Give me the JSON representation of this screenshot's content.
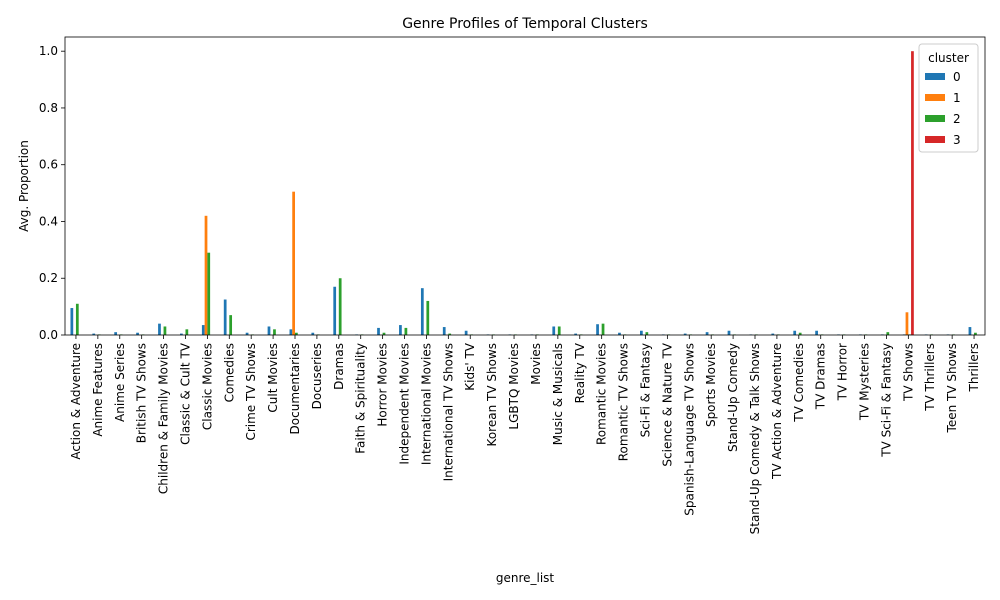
{
  "chart_data": {
    "type": "bar",
    "title": "Genre Profiles of Temporal Clusters",
    "xlabel": "genre_list",
    "ylabel": "Avg. Proportion",
    "ylim": [
      0,
      1.05
    ],
    "yticks": [
      "0.0",
      "0.2",
      "0.4",
      "0.6",
      "0.8",
      "1.0"
    ],
    "legend": {
      "title": "cluster",
      "placement": "top-right"
    },
    "colors": [
      "#1f77b4",
      "#ff7f0e",
      "#2ca02c",
      "#d62728"
    ],
    "categories": [
      "Action & Adventure",
      "Anime Features",
      "Anime Series",
      "British TV Shows",
      "Children & Family Movies",
      "Classic & Cult TV",
      "Classic Movies",
      "Comedies",
      "Crime TV Shows",
      "Cult Movies",
      "Documentaries",
      "Docuseries",
      "Dramas",
      "Faith & Spirituality",
      "Horror Movies",
      "Independent Movies",
      "International Movies",
      "International TV Shows",
      "Kids' TV",
      "Korean TV Shows",
      "LGBTQ Movies",
      "Movies",
      "Music & Musicals",
      "Reality TV",
      "Romantic Movies",
      "Romantic TV Shows",
      "Sci-Fi & Fantasy",
      "Science & Nature TV",
      "Spanish-Language TV Shows",
      "Sports Movies",
      "Stand-Up Comedy",
      "Stand-Up Comedy & Talk Shows",
      "TV Action & Adventure",
      "TV Comedies",
      "TV Dramas",
      "TV Horror",
      "TV Mysteries",
      "TV Sci-Fi & Fantasy",
      "TV Shows",
      "TV Thrillers",
      "Teen TV Shows",
      "Thrillers"
    ],
    "series": [
      {
        "name": "0",
        "values": [
          0.095,
          0.005,
          0.01,
          0.008,
          0.04,
          0.005,
          0.035,
          0.125,
          0.008,
          0.03,
          0.02,
          0.008,
          0.17,
          0.002,
          0.025,
          0.035,
          0.165,
          0.028,
          0.015,
          0.002,
          0.002,
          0.002,
          0.03,
          0.005,
          0.038,
          0.008,
          0.015,
          0.002,
          0.005,
          0.01,
          0.015,
          0.002,
          0.005,
          0.015,
          0.015,
          0.002,
          0.002,
          0.002,
          0.002,
          0.002,
          0.002,
          0.028
        ]
      },
      {
        "name": "1",
        "values": [
          0,
          0,
          0,
          0,
          0,
          0,
          0.42,
          0,
          0,
          0,
          0.505,
          0,
          0,
          0,
          0,
          0,
          0,
          0,
          0,
          0,
          0,
          0,
          0,
          0,
          0,
          0,
          0,
          0,
          0,
          0,
          0,
          0,
          0,
          0,
          0,
          0,
          0,
          0,
          0.08,
          0,
          0,
          0
        ]
      },
      {
        "name": "2",
        "values": [
          0.11,
          0.002,
          0.002,
          0.002,
          0.03,
          0.02,
          0.29,
          0.07,
          0.002,
          0.02,
          0.008,
          0.002,
          0.2,
          0.002,
          0.008,
          0.025,
          0.12,
          0.005,
          0.002,
          0.002,
          0.002,
          0.002,
          0.03,
          0.002,
          0.04,
          0.002,
          0.01,
          0.002,
          0.002,
          0.002,
          0.002,
          0.002,
          0.002,
          0.008,
          0.002,
          0.002,
          0.002,
          0.01,
          0.002,
          0.002,
          0.002,
          0.008
        ]
      },
      {
        "name": "3",
        "values": [
          0,
          0,
          0,
          0,
          0,
          0,
          0,
          0,
          0,
          0,
          0,
          0,
          0,
          0,
          0,
          0,
          0,
          0,
          0,
          0,
          0,
          0,
          0,
          0,
          0,
          0,
          0,
          0,
          0,
          0,
          0,
          0,
          0,
          0,
          0,
          0,
          0,
          0,
          1.0,
          0,
          0,
          0
        ]
      }
    ]
  }
}
